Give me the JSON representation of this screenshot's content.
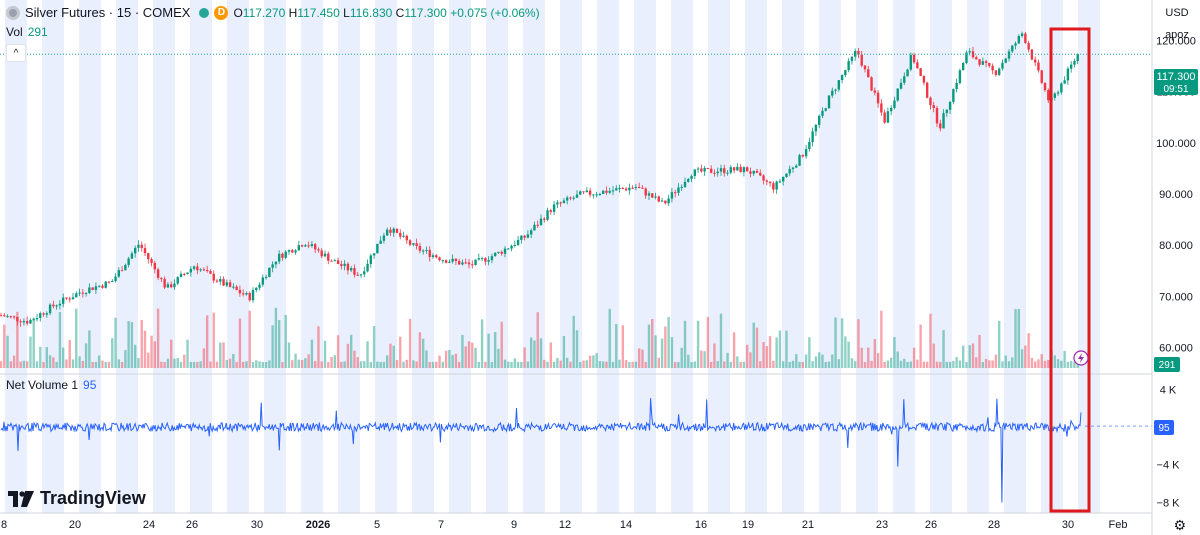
{
  "legend": {
    "title": "Silver Futures · 15 · COMEX",
    "open_label": "O",
    "open": "117.270",
    "high_label": "H",
    "high": "117.450",
    "low_label": "L",
    "low": "116.830",
    "close_label": "C",
    "close": "117.300",
    "change": "+0.075 (+0.06%)",
    "interval_badge": "D",
    "volume_label": "Vol",
    "volume_value": "291",
    "netvol_label": "Net Volume 1",
    "netvol_value": "95"
  },
  "top_right": {
    "currency": "USD",
    "scale_mode": "apoz"
  },
  "price_tag": {
    "price": "117.300",
    "countdown": "09:51"
  },
  "volume_tag": "291",
  "netvol_tag": "95",
  "brand": "TradingView",
  "colors": {
    "up": "#089981",
    "down": "#f23645",
    "netvol": "#2962ff",
    "session_band": "#e9effc",
    "highlight": "#e0191e"
  },
  "chart_data": [
    {
      "type": "line",
      "series": [
        {
          "values": [
            66.3,
            65.1,
            68.5,
            71.2,
            72.8,
            80.3,
            71.5,
            76.0,
            72.6,
            69.8,
            77.6,
            80.6,
            77.0,
            74.1,
            83.5,
            79.5,
            77.3,
            76.1,
            78.4,
            81.7,
            87.5,
            89.9,
            90.6,
            91.4,
            88.0,
            94.2,
            94.6,
            94.8,
            91.3,
            97.4,
            108.8,
            118.1,
            104.3,
            117.1,
            103.1,
            117.8,
            113.6,
            121.5,
            107.6,
            117.3
          ]
        }
      ],
      "x_tick_labels": [
        "8",
        "20",
        "24",
        "26",
        "30",
        "2026",
        "5",
        "7",
        "9",
        "12",
        "14",
        "16",
        "19",
        "21",
        "23",
        "26",
        "28",
        "30",
        "Feb"
      ],
      "y_tick_labels": [
        "120.000",
        "110.000",
        "100.000",
        "90.000",
        "80.000",
        "70.000",
        "60.000"
      ],
      "ylim": [
        56,
        124
      ],
      "last_price": 117.3
    },
    {
      "type": "bar",
      "series": [
        {
          "values": [
            291
          ]
        }
      ]
    },
    {
      "type": "line",
      "series": [
        {
          "values": [
            95
          ]
        }
      ],
      "y_tick_labels": [
        "4 K",
        "0",
        "−4 K",
        "−8 K"
      ],
      "ylim": [
        -8800,
        5200
      ],
      "last_value": 95
    }
  ]
}
